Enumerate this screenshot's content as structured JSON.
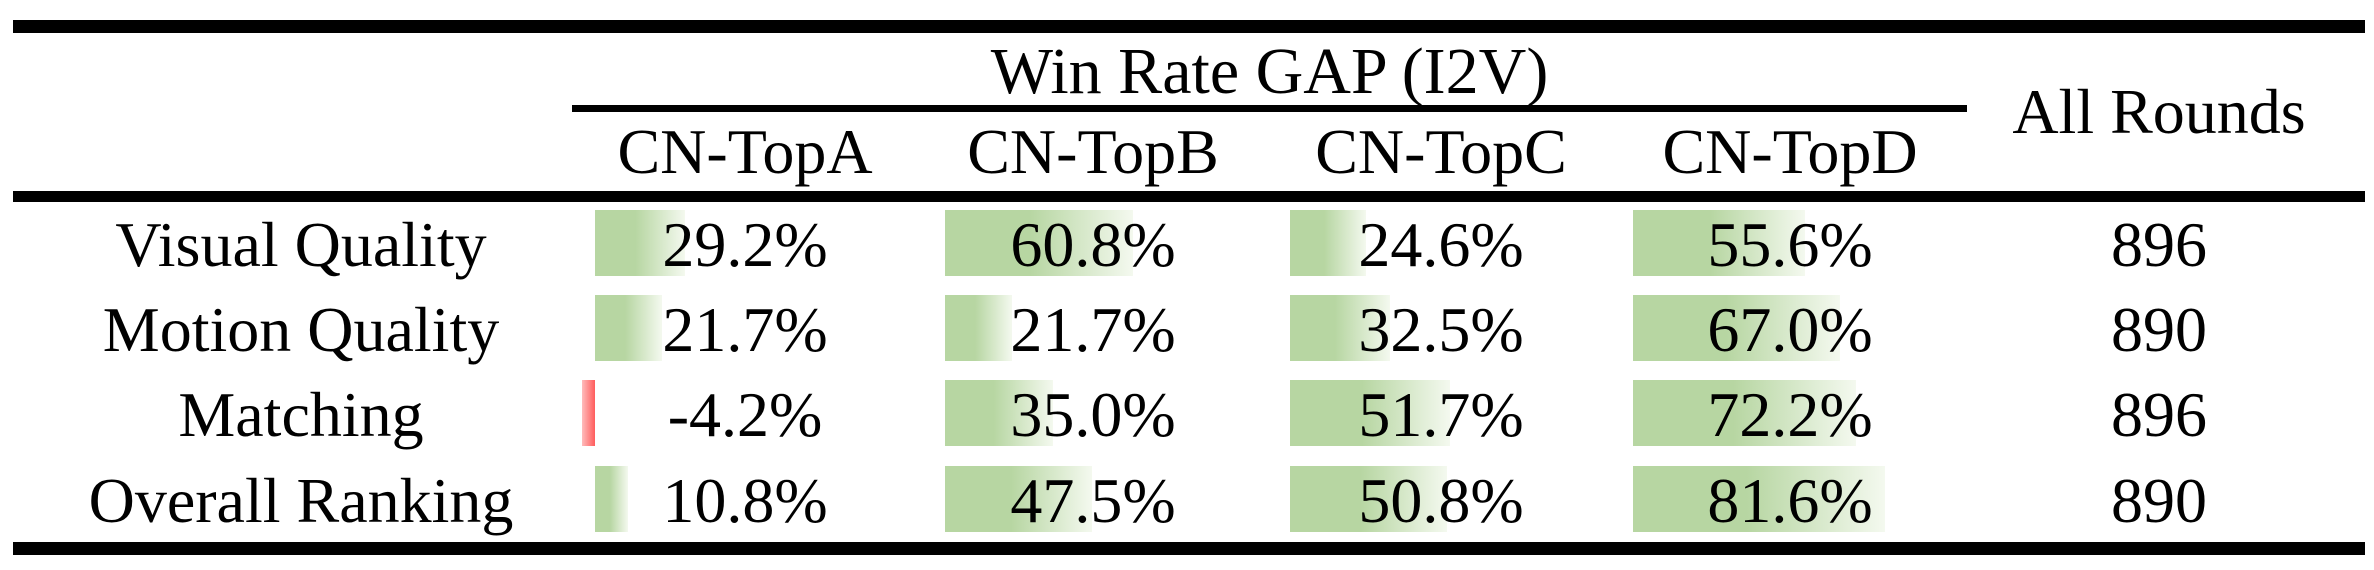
{
  "table": {
    "group_header": "Win Rate GAP (I2V)",
    "all_rounds_header": "All Rounds",
    "columns": [
      "CN-TopA",
      "CN-TopB",
      "CN-TopC",
      "CN-TopD"
    ],
    "rows": [
      {
        "label": "Visual Quality",
        "cells": [
          {
            "display": "29.2%",
            "value": 29.2
          },
          {
            "display": "60.8%",
            "value": 60.8
          },
          {
            "display": "24.6%",
            "value": 24.6
          },
          {
            "display": "55.6%",
            "value": 55.6
          }
        ],
        "rounds": "896"
      },
      {
        "label": "Motion Quality",
        "cells": [
          {
            "display": "21.7%",
            "value": 21.7
          },
          {
            "display": "21.7%",
            "value": 21.7
          },
          {
            "display": "32.5%",
            "value": 32.5
          },
          {
            "display": "67.0%",
            "value": 67.0
          }
        ],
        "rounds": "890"
      },
      {
        "label": "Matching",
        "cells": [
          {
            "display": "-4.2%",
            "value": -4.2
          },
          {
            "display": "35.0%",
            "value": 35.0
          },
          {
            "display": "51.7%",
            "value": 51.7
          },
          {
            "display": "72.2%",
            "value": 72.2
          }
        ],
        "rounds": "896"
      },
      {
        "label": "Overall Ranking",
        "cells": [
          {
            "display": "10.8%",
            "value": 10.8
          },
          {
            "display": "47.5%",
            "value": 47.5
          },
          {
            "display": "50.8%",
            "value": 50.8
          },
          {
            "display": "81.6%",
            "value": 81.6
          }
        ],
        "rounds": "890"
      }
    ],
    "colors": {
      "bar_positive_start": "#b7d6a2",
      "bar_positive_end": "#f4f9ef",
      "bar_negative_start": "#ffbcbc",
      "bar_negative_end": "#ff5c5c",
      "rule": "#000000",
      "text": "#000000"
    }
  },
  "chart_data": {
    "type": "table",
    "title": "Win Rate GAP (I2V)",
    "columns": [
      "CN-TopA",
      "CN-TopB",
      "CN-TopC",
      "CN-TopD",
      "All Rounds"
    ],
    "row_labels": [
      "Visual Quality",
      "Motion Quality",
      "Matching",
      "Overall Ranking"
    ],
    "series": [
      {
        "name": "CN-TopA",
        "values": [
          29.2,
          21.7,
          -4.2,
          10.8
        ]
      },
      {
        "name": "CN-TopB",
        "values": [
          60.8,
          21.7,
          35.0,
          47.5
        ]
      },
      {
        "name": "CN-TopC",
        "values": [
          24.6,
          32.5,
          51.7,
          50.8
        ]
      },
      {
        "name": "CN-TopD",
        "values": [
          55.6,
          67.0,
          72.2,
          81.6
        ]
      }
    ],
    "all_rounds": [
      896,
      890,
      896,
      890
    ],
    "units": "percent win-rate gap, in-cell data bars (green positive, red negative)"
  }
}
